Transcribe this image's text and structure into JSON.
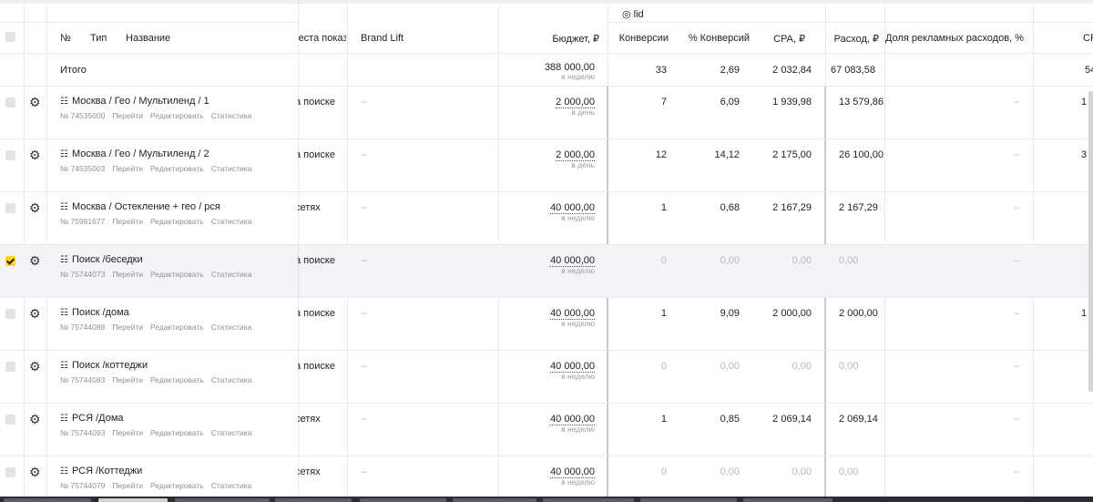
{
  "group_header": "◎ lid",
  "columns": {
    "num": "№",
    "type": "Тип",
    "name": "Название",
    "places": "места показ",
    "brand_lift": "Brand Lift",
    "budget": "Бюджет, ₽",
    "conversions": "Конверсии",
    "conv_pct": "% Конверсий",
    "cpa": "CPA, ₽",
    "spend": "Расход, ₽",
    "ad_share": "Доля рекламных расходов, %",
    "extra": "CF"
  },
  "total": {
    "label": "Итого",
    "budget": "388 000,00",
    "budget_period": "в неделю",
    "conversions": "33",
    "conv_pct": "2,69",
    "cpa": "2 032,84",
    "spend": "67 083,58",
    "extra": "54"
  },
  "row_links": {
    "go": "Перейти",
    "edit": "Редактировать",
    "stats": "Статистика"
  },
  "rows": [
    {
      "name": "Москва / Гео / Мультиленд / 1",
      "id": "№ 74535000",
      "place": "а поиске",
      "brand_lift": "–",
      "budget": "2 000,00",
      "period": "в день",
      "conversions": "7",
      "conv_pct": "6,09",
      "cpa": "1 939,98",
      "spend": "13 579,86",
      "ad_share": "–",
      "extra": "1",
      "checked": false
    },
    {
      "name": "Москва / Гео / Мультиленд / 2",
      "id": "№ 74535003",
      "place": "а поиске",
      "brand_lift": "–",
      "budget": "2 000,00",
      "period": "в день",
      "conversions": "12",
      "conv_pct": "14,12",
      "cpa": "2 175,00",
      "spend": "26 100,00",
      "ad_share": "–",
      "extra": "3",
      "checked": false
    },
    {
      "name": "Москва / Остекление + гео / рся",
      "id": "№ 75981677",
      "place": "сетях",
      "brand_lift": "–",
      "budget": "40 000,00",
      "period": "в неделю",
      "conversions": "1",
      "conv_pct": "0,68",
      "cpa": "2 167,29",
      "spend": "2 167,29",
      "ad_share": "–",
      "extra": "",
      "checked": false
    },
    {
      "name": "Поиск /беседки",
      "id": "№ 75744073",
      "place": "а поиске",
      "brand_lift": "–",
      "budget": "40 000,00",
      "period": "в неделю",
      "conversions": "0",
      "conv_pct": "0,00",
      "cpa": "0,00",
      "spend": "0,00",
      "ad_share": "–",
      "extra": "",
      "checked": true
    },
    {
      "name": "Поиск /дома",
      "id": "№ 75744088",
      "place": "а поиске",
      "brand_lift": "–",
      "budget": "40 000,00",
      "period": "в неделю",
      "conversions": "1",
      "conv_pct": "9,09",
      "cpa": "2 000,00",
      "spend": "2 000,00",
      "ad_share": "–",
      "extra": "1",
      "checked": false
    },
    {
      "name": "Поиск /коттеджи",
      "id": "№ 75744083",
      "place": "а поиске",
      "brand_lift": "–",
      "budget": "40 000,00",
      "period": "в неделю",
      "conversions": "0",
      "conv_pct": "0,00",
      "cpa": "0,00",
      "spend": "0,00",
      "ad_share": "–",
      "extra": "",
      "checked": false
    },
    {
      "name": "РСЯ /Дома",
      "id": "№ 75744093",
      "place": "сетях",
      "brand_lift": "–",
      "budget": "40 000,00",
      "period": "в неделю",
      "conversions": "1",
      "conv_pct": "0,85",
      "cpa": "2 069,14",
      "spend": "2 069,14",
      "ad_share": "–",
      "extra": "",
      "checked": false
    },
    {
      "name": "РСЯ /Коттеджи",
      "id": "№ 75744079",
      "place": "сетях",
      "brand_lift": "–",
      "budget": "40 000,00",
      "period": "в неделю",
      "conversions": "0",
      "conv_pct": "0,00",
      "cpa": "0,00",
      "spend": "0,00",
      "ad_share": "–",
      "extra": "",
      "checked": false
    }
  ]
}
